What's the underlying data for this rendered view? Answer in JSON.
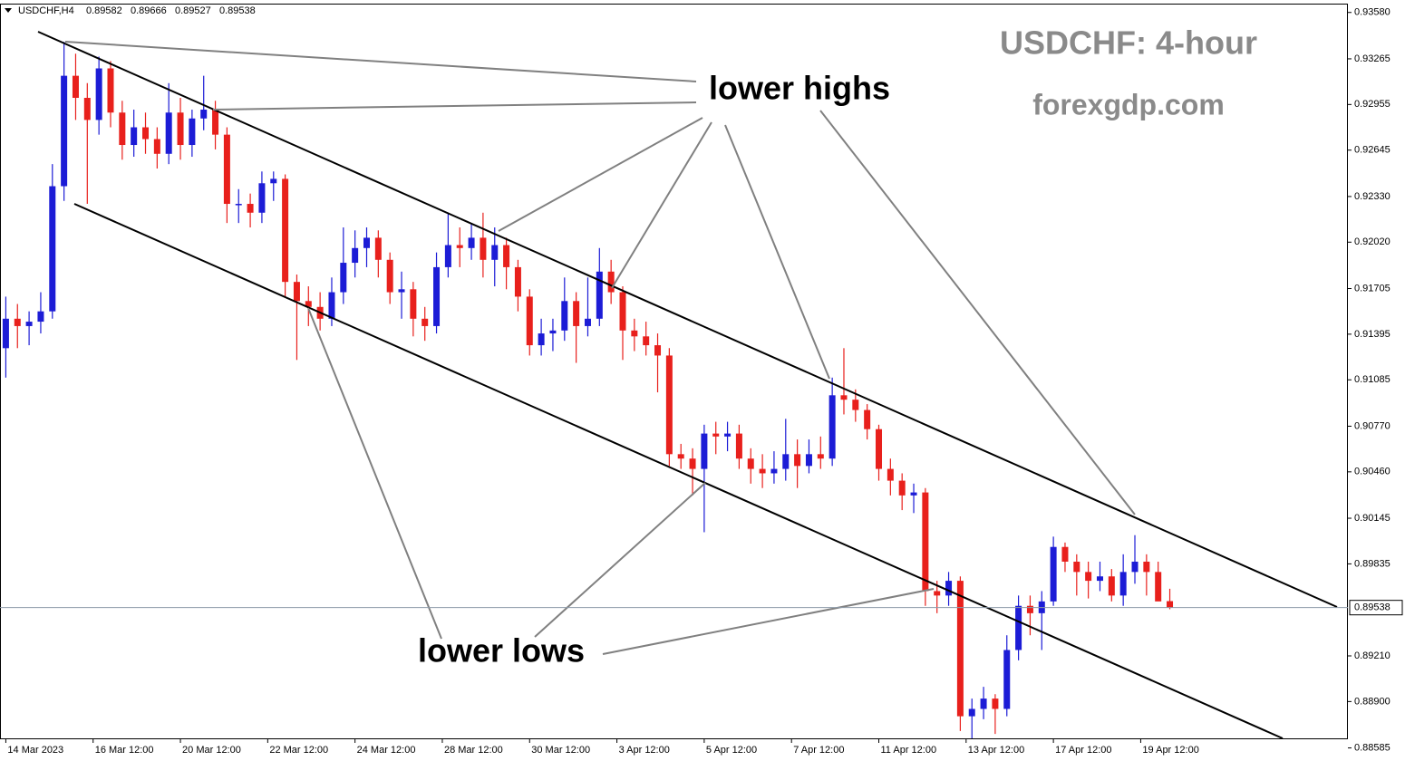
{
  "chart_data": {
    "type": "candlestick",
    "symbol": "USDCHF,H4",
    "title": "USDCHF: 4-hour",
    "subtitle": "forexgdp.com",
    "annotations": [
      "lower highs",
      "lower lows"
    ],
    "up_color": "#1c1cd6",
    "down_color": "#e8201c",
    "ylim": [
      0.8865,
      0.9364
    ],
    "xlim": [
      -0.5,
      115.3
    ],
    "yticks": [
      {
        "value": 0.9358,
        "label": "0.93580"
      },
      0.93265,
      0.92955,
      0.92645,
      {
        "value": 0.9233,
        "label": "0.92330"
      },
      {
        "value": 0.9202,
        "label": "0.92020"
      },
      0.91705,
      0.91395,
      0.91085,
      {
        "value": 0.9077,
        "label": "0.90770"
      },
      {
        "value": 0.9046,
        "label": "0.90460"
      },
      0.90145,
      0.89835,
      {
        "value": 0.8921,
        "label": "0.89210"
      },
      {
        "value": 0.889,
        "label": "0.88900"
      },
      0.88585
    ],
    "xticks": [
      {
        "value": 0,
        "label": "14 Mar 2023"
      },
      {
        "value": 7.5,
        "label": "16 Mar 12:00"
      },
      {
        "value": 15,
        "label": "20 Mar 12:00"
      },
      {
        "value": 22.5,
        "label": "22 Mar 12:00"
      },
      {
        "value": 30,
        "label": "24 Mar 12:00"
      },
      {
        "value": 37.5,
        "label": "28 Mar 12:00"
      },
      {
        "value": 45,
        "label": "30 Mar 12:00"
      },
      {
        "value": 52.5,
        "label": "3 Apr 12:00"
      },
      {
        "value": 60,
        "label": "5 Apr 12:00"
      },
      {
        "value": 67.5,
        "label": "7 Apr 12:00"
      },
      {
        "value": 75,
        "label": "11 Apr 12:00"
      },
      {
        "value": 82.5,
        "label": "13 Apr 12:00"
      },
      {
        "value": 90,
        "label": "17 Apr 12:00"
      },
      {
        "value": 97.5,
        "label": "19 Apr 12:00"
      }
    ],
    "ohlc": [
      [
        0.913,
        0.9165,
        0.911,
        0.915
      ],
      [
        0.915,
        0.916,
        0.913,
        0.9145
      ],
      [
        0.9145,
        0.9155,
        0.9132,
        0.9148
      ],
      [
        0.9148,
        0.9168,
        0.914,
        0.9155
      ],
      [
        0.9155,
        0.9255,
        0.915,
        0.924
      ],
      [
        0.924,
        0.9338,
        0.923,
        0.9315
      ],
      [
        0.9315,
        0.933,
        0.9285,
        0.93
      ],
      [
        0.93,
        0.931,
        0.9228,
        0.9285
      ],
      [
        0.9285,
        0.9328,
        0.9275,
        0.932
      ],
      [
        0.932,
        0.9325,
        0.928,
        0.929
      ],
      [
        0.929,
        0.9298,
        0.9258,
        0.9268
      ],
      [
        0.9268,
        0.9292,
        0.926,
        0.928
      ],
      [
        0.928,
        0.929,
        0.9262,
        0.9272
      ],
      [
        0.9272,
        0.928,
        0.9252,
        0.9262
      ],
      [
        0.9262,
        0.931,
        0.9255,
        0.929
      ],
      [
        0.929,
        0.93,
        0.9258,
        0.9268
      ],
      [
        0.9268,
        0.9292,
        0.926,
        0.9286
      ],
      [
        0.9286,
        0.9315,
        0.9278,
        0.9292
      ],
      [
        0.9292,
        0.9298,
        0.9265,
        0.9275
      ],
      [
        0.9275,
        0.928,
        0.9215,
        0.9228
      ],
      [
        0.9228,
        0.9238,
        0.9215,
        0.9228
      ],
      [
        0.9228,
        0.9235,
        0.9212,
        0.9222
      ],
      [
        0.9222,
        0.925,
        0.9215,
        0.9242
      ],
      [
        0.9242,
        0.925,
        0.923,
        0.9245
      ],
      [
        0.9245,
        0.9248,
        0.9165,
        0.9175
      ],
      [
        0.9175,
        0.918,
        0.9122,
        0.9162
      ],
      [
        0.9162,
        0.9172,
        0.9145,
        0.9158
      ],
      [
        0.9158,
        0.9168,
        0.9142,
        0.915
      ],
      [
        0.915,
        0.9178,
        0.9145,
        0.9168
      ],
      [
        0.9168,
        0.9212,
        0.916,
        0.9188
      ],
      [
        0.9188,
        0.921,
        0.9178,
        0.9198
      ],
      [
        0.9198,
        0.9212,
        0.9185,
        0.9205
      ],
      [
        0.9205,
        0.921,
        0.9178,
        0.919
      ],
      [
        0.919,
        0.9195,
        0.916,
        0.9168
      ],
      [
        0.9168,
        0.9182,
        0.915,
        0.917
      ],
      [
        0.917,
        0.9175,
        0.9138,
        0.915
      ],
      [
        0.915,
        0.9158,
        0.9135,
        0.9145
      ],
      [
        0.9145,
        0.9195,
        0.914,
        0.9185
      ],
      [
        0.9185,
        0.9222,
        0.9178,
        0.92
      ],
      [
        0.92,
        0.9212,
        0.9185,
        0.9198
      ],
      [
        0.9198,
        0.9215,
        0.919,
        0.9205
      ],
      [
        0.9205,
        0.9222,
        0.9178,
        0.919
      ],
      [
        0.919,
        0.9212,
        0.9172,
        0.92
      ],
      [
        0.92,
        0.9205,
        0.917,
        0.9185
      ],
      [
        0.9185,
        0.919,
        0.9155,
        0.9165
      ],
      [
        0.9165,
        0.917,
        0.9125,
        0.9132
      ],
      [
        0.9132,
        0.915,
        0.9125,
        0.914
      ],
      [
        0.914,
        0.915,
        0.9128,
        0.9142
      ],
      [
        0.9142,
        0.9178,
        0.9135,
        0.9162
      ],
      [
        0.9162,
        0.9168,
        0.912,
        0.9145
      ],
      [
        0.9145,
        0.9178,
        0.9138,
        0.915
      ],
      [
        0.915,
        0.9198,
        0.9145,
        0.9182
      ],
      [
        0.9182,
        0.919,
        0.916,
        0.9168
      ],
      [
        0.9168,
        0.9172,
        0.9122,
        0.9142
      ],
      [
        0.9142,
        0.915,
        0.9128,
        0.9138
      ],
      [
        0.9138,
        0.9148,
        0.9125,
        0.9132
      ],
      [
        0.9132,
        0.914,
        0.91,
        0.9125
      ],
      [
        0.9125,
        0.913,
        0.905,
        0.9058
      ],
      [
        0.9058,
        0.9065,
        0.9048,
        0.9055
      ],
      [
        0.9055,
        0.9062,
        0.903,
        0.9048
      ],
      [
        0.9048,
        0.9078,
        0.9005,
        0.9072
      ],
      [
        0.9072,
        0.908,
        0.9058,
        0.907
      ],
      [
        0.907,
        0.908,
        0.906,
        0.9072
      ],
      [
        0.9072,
        0.9078,
        0.9048,
        0.9055
      ],
      [
        0.9055,
        0.9062,
        0.9038,
        0.9048
      ],
      [
        0.9048,
        0.9058,
        0.9035,
        0.9045
      ],
      [
        0.9045,
        0.906,
        0.9038,
        0.9048
      ],
      [
        0.9048,
        0.9082,
        0.904,
        0.9058
      ],
      [
        0.9058,
        0.9068,
        0.9035,
        0.905
      ],
      [
        0.905,
        0.9068,
        0.9045,
        0.9058
      ],
      [
        0.9058,
        0.907,
        0.9048,
        0.9055
      ],
      [
        0.9055,
        0.911,
        0.905,
        0.9098
      ],
      [
        0.9098,
        0.913,
        0.9085,
        0.9095
      ],
      [
        0.9095,
        0.9102,
        0.908,
        0.9088
      ],
      [
        0.9088,
        0.9092,
        0.9068,
        0.9075
      ],
      [
        0.9075,
        0.9078,
        0.904,
        0.9048
      ],
      [
        0.9048,
        0.9055,
        0.903,
        0.904
      ],
      [
        0.904,
        0.9045,
        0.902,
        0.903
      ],
      [
        0.903,
        0.9038,
        0.9018,
        0.9032
      ],
      [
        0.9032,
        0.9035,
        0.8955,
        0.8965
      ],
      [
        0.8965,
        0.8972,
        0.895,
        0.8962
      ],
      [
        0.8962,
        0.8978,
        0.8955,
        0.8972
      ],
      [
        0.8972,
        0.8975,
        0.887,
        0.888
      ],
      [
        0.888,
        0.8892,
        0.8865,
        0.8885
      ],
      [
        0.8885,
        0.89,
        0.8878,
        0.8892
      ],
      [
        0.8892,
        0.8895,
        0.8868,
        0.8885
      ],
      [
        0.8885,
        0.8935,
        0.888,
        0.8925
      ],
      [
        0.8925,
        0.8962,
        0.8918,
        0.8955
      ],
      [
        0.8955,
        0.8962,
        0.8935,
        0.895
      ],
      [
        0.895,
        0.8965,
        0.8925,
        0.8958
      ],
      [
        0.8958,
        0.9002,
        0.8955,
        0.8995
      ],
      [
        0.8995,
        0.8998,
        0.8978,
        0.8985
      ],
      [
        0.8985,
        0.899,
        0.8962,
        0.8978
      ],
      [
        0.8978,
        0.8985,
        0.896,
        0.8972
      ],
      [
        0.8972,
        0.8985,
        0.8965,
        0.8975
      ],
      [
        0.8975,
        0.898,
        0.8958,
        0.8962
      ],
      [
        0.8962,
        0.899,
        0.8955,
        0.8978
      ],
      [
        0.8978,
        0.9003,
        0.897,
        0.8985
      ],
      [
        0.8985,
        0.899,
        0.8962,
        0.8978
      ],
      [
        0.8978,
        0.8985,
        0.8962,
        0.8958
      ],
      [
        0.89582,
        0.89666,
        0.89527,
        0.89538
      ]
    ]
  }
}
